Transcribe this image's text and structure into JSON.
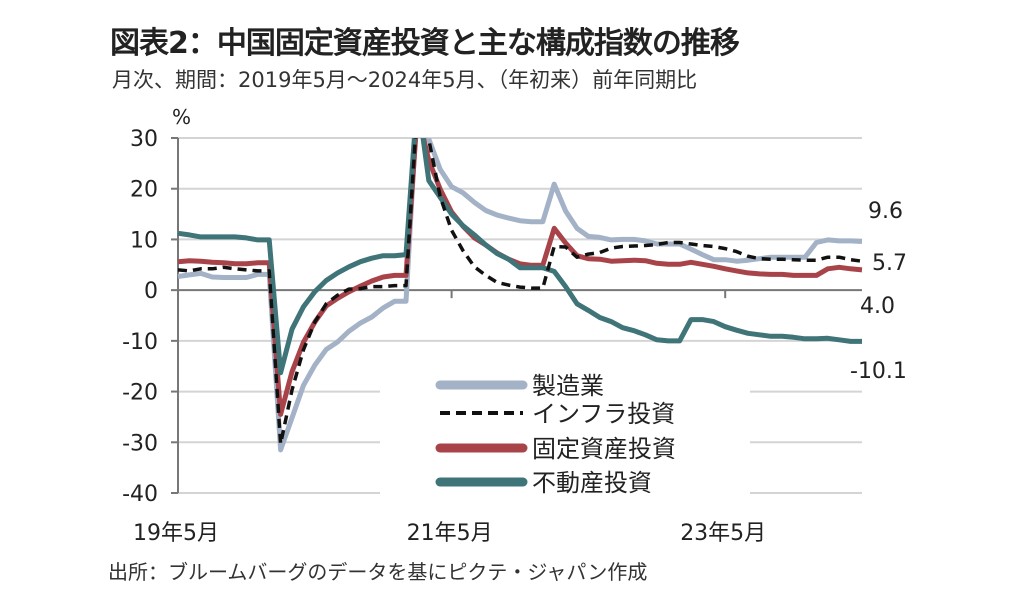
{
  "title": "図表2：中国固定資産投資と主な構成指数の推移",
  "subtitle": "月次、期間：2019年5月～2024年5月、（年初来）前年同期比",
  "source": "出所：ブルームバーグのデータを基にピクテ・ジャパン作成",
  "chart_data": {
    "type": "line",
    "ylabel": "%",
    "ylim": [
      -40,
      30
    ],
    "yticks": [
      "30",
      "20",
      "10",
      "0",
      "-10",
      "-20",
      "-30",
      "-40"
    ],
    "ytick_values": [
      30,
      20,
      10,
      0,
      -10,
      -20,
      -30,
      -40
    ],
    "x_start": "2019-05",
    "x_end": "2024-05",
    "xticks": [
      {
        "label": "19年5月",
        "index": 0
      },
      {
        "label": "21年5月",
        "index": 24
      },
      {
        "label": "23年5月",
        "index": 48
      }
    ],
    "grid": true,
    "legend_placement": "bottom-center",
    "end_labels": [
      "9.6",
      "5.7",
      "4.0",
      "-10.1"
    ],
    "series": [
      {
        "name": "製造業",
        "color": "#a3b2c6",
        "dash": false,
        "values": [
          2.7,
          3.0,
          3.3,
          2.6,
          2.5,
          2.5,
          2.5,
          3.1,
          3.1,
          -31.5,
          -25.2,
          -18.8,
          -14.8,
          -11.7,
          -10.2,
          -8.1,
          -6.5,
          -5.3,
          -3.5,
          -2.2,
          -2.2,
          37.3,
          29.8,
          23.8,
          20.4,
          19.2,
          17.3,
          15.7,
          14.8,
          14.2,
          13.7,
          13.5,
          13.5,
          20.9,
          15.6,
          12.2,
          10.6,
          10.4,
          9.9,
          10.0,
          10.0,
          9.7,
          9.1,
          9.1,
          9.1,
          8.1,
          7.0,
          6.0,
          6.0,
          5.7,
          5.9,
          6.2,
          6.5,
          6.5,
          6.5,
          6.5,
          9.4,
          9.9,
          9.7,
          9.7,
          9.6
        ]
      },
      {
        "name": "インフラ投資",
        "color": "#111111",
        "dash": true,
        "values": [
          4.0,
          3.8,
          4.2,
          4.2,
          4.5,
          4.2,
          4.0,
          3.8,
          3.8,
          -30.3,
          -19.7,
          -11.8,
          -6.3,
          -2.7,
          -1.0,
          0.2,
          0.3,
          0.7,
          0.7,
          0.9,
          0.9,
          36.6,
          29.7,
          18.4,
          11.8,
          7.8,
          4.6,
          2.9,
          1.5,
          1.0,
          0.6,
          0.4,
          0.4,
          8.6,
          8.5,
          6.5,
          7.1,
          7.4,
          8.3,
          8.6,
          8.7,
          8.8,
          9.0,
          9.4,
          9.4,
          9.1,
          8.8,
          8.6,
          8.2,
          7.6,
          6.7,
          6.2,
          6.1,
          6.1,
          6.0,
          5.9,
          5.9,
          6.5,
          6.5,
          6.0,
          5.7
        ]
      },
      {
        "name": "固定資産投資",
        "color": "#a8434a",
        "dash": false,
        "values": [
          5.6,
          5.8,
          5.7,
          5.5,
          5.4,
          5.2,
          5.2,
          5.4,
          5.4,
          -24.5,
          -16.1,
          -10.3,
          -6.3,
          -3.1,
          -1.6,
          -0.3,
          0.8,
          1.8,
          2.6,
          2.9,
          2.9,
          35.0,
          25.6,
          19.9,
          15.4,
          12.6,
          10.3,
          8.9,
          7.3,
          6.1,
          5.2,
          4.9,
          4.9,
          12.2,
          9.3,
          6.8,
          6.2,
          6.1,
          5.7,
          5.8,
          5.9,
          5.8,
          5.3,
          5.1,
          5.1,
          5.5,
          5.1,
          4.7,
          4.2,
          3.8,
          3.4,
          3.2,
          3.1,
          3.1,
          2.9,
          2.9,
          2.9,
          4.2,
          4.5,
          4.2,
          4.0
        ]
      },
      {
        "name": "不動産投資",
        "color": "#3f7478",
        "dash": false,
        "values": [
          11.2,
          10.9,
          10.5,
          10.5,
          10.5,
          10.5,
          10.3,
          9.9,
          9.9,
          -16.3,
          -7.7,
          -3.3,
          -0.3,
          1.9,
          3.4,
          4.6,
          5.6,
          6.3,
          6.8,
          6.8,
          7.0,
          38.3,
          21.6,
          18.3,
          15.0,
          12.7,
          10.9,
          8.9,
          7.2,
          6.1,
          4.4,
          4.4,
          4.4,
          3.7,
          0.7,
          -2.7,
          -4.0,
          -5.4,
          -6.2,
          -7.4,
          -8.0,
          -8.8,
          -9.8,
          -10.0,
          -10.0,
          -5.8,
          -5.8,
          -6.2,
          -7.2,
          -7.9,
          -8.5,
          -8.8,
          -9.1,
          -9.1,
          -9.3,
          -9.6,
          -9.6,
          -9.5,
          -9.8,
          -10.1,
          -10.1
        ]
      }
    ]
  }
}
